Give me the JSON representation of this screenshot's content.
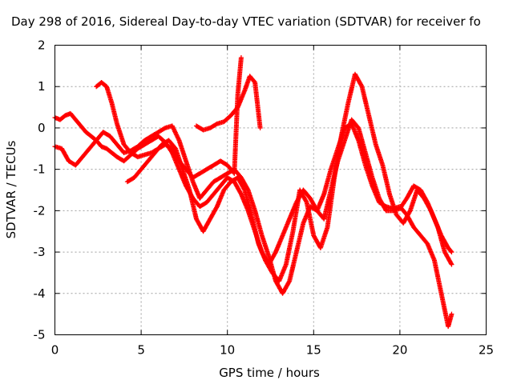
{
  "chart_data": {
    "type": "scatter",
    "title": "Day 298 of 2016, Sidereal Day-to-day VTEC variation (SDTVAR) for receiver fo",
    "xlabel": "GPS time / hours",
    "ylabel": "SDTVAR / TECUs",
    "xlim": [
      0,
      25
    ],
    "ylim": [
      -5,
      2
    ],
    "xticks": [
      "0",
      "5",
      "10",
      "15",
      "20",
      "25"
    ],
    "yticks": [
      "2",
      "1",
      "0",
      "-1",
      "-2",
      "-3",
      "-4",
      "-5"
    ],
    "grid": true,
    "marker": "+",
    "color": "#ff0000",
    "series": [
      {
        "x": [
          0,
          0.3,
          0.6,
          0.9,
          1.2,
          1.5,
          1.8,
          2.1,
          2.4,
          2.7,
          3.0,
          3.3,
          3.6,
          4.0,
          4.4,
          4.8,
          5.2,
          5.6,
          6.0,
          6.4,
          6.8,
          7.2,
          7.6,
          8.0,
          8.4,
          8.8,
          9.2,
          9.6,
          10.0,
          10.4,
          10.8,
          11.2,
          11.6,
          12.0,
          12.4,
          12.8,
          13.2,
          13.6,
          14.0,
          14.4,
          14.8,
          15.2,
          15.6,
          16.0,
          16.4,
          16.8,
          17.2,
          17.6,
          18.0,
          18.4,
          18.8,
          19.2,
          19.6,
          20.0,
          20.4,
          20.8,
          21.2,
          21.6,
          22.0,
          22.4,
          22.8,
          23.0
        ],
        "y": [
          0.25,
          0.2,
          0.3,
          0.35,
          0.2,
          0.05,
          -0.1,
          -0.2,
          -0.3,
          -0.45,
          -0.5,
          -0.6,
          -0.7,
          -0.8,
          -0.65,
          -0.5,
          -0.4,
          -0.3,
          -0.2,
          -0.35,
          -0.6,
          -1.0,
          -1.4,
          -1.7,
          -1.9,
          -1.8,
          -1.6,
          -1.4,
          -1.2,
          -1.3,
          -1.6,
          -2.0,
          -2.5,
          -3.0,
          -3.3,
          -3.0,
          -2.6,
          -2.2,
          -1.8,
          -1.5,
          -1.7,
          -2.0,
          -1.6,
          -1.0,
          -0.5,
          0.0,
          0.1,
          -0.3,
          -0.9,
          -1.4,
          -1.8,
          -1.9,
          -1.95,
          -1.9,
          -2.1,
          -2.4,
          -2.6,
          -2.8,
          -3.2,
          -4.0,
          -4.8,
          -4.5
        ]
      },
      {
        "x": [
          0,
          0.4,
          0.8,
          1.2,
          1.6,
          2.0,
          2.4,
          2.8,
          3.2,
          3.6,
          4.0,
          4.4,
          4.8,
          5.2,
          5.6,
          6.0,
          6.4,
          6.8,
          7.2,
          7.6,
          8.0,
          8.4,
          8.8,
          9.2,
          9.6,
          10.0,
          10.4,
          10.8,
          11.2,
          11.6,
          12.0,
          12.4,
          12.8,
          13.2,
          13.6,
          14.0,
          14.4,
          14.8,
          15.2,
          15.6,
          16.0,
          16.4,
          16.8,
          17.2,
          17.6,
          18.0,
          18.4,
          18.8,
          19.2,
          19.6,
          20.0,
          20.4,
          20.8,
          21.2,
          21.6,
          22.0,
          22.4,
          22.8,
          23.0
        ],
        "y": [
          -0.45,
          -0.5,
          -0.8,
          -0.9,
          -0.7,
          -0.5,
          -0.3,
          -0.1,
          -0.2,
          -0.4,
          -0.6,
          -0.55,
          -0.45,
          -0.3,
          -0.2,
          -0.1,
          0.0,
          0.05,
          -0.3,
          -0.8,
          -1.3,
          -1.7,
          -1.5,
          -1.3,
          -1.2,
          -1.1,
          -1.0,
          -1.2,
          -1.5,
          -2.0,
          -2.6,
          -3.1,
          -3.7,
          -4.0,
          -3.7,
          -3.0,
          -2.3,
          -1.9,
          -2.0,
          -2.2,
          -1.5,
          -0.8,
          -0.3,
          0.2,
          0.0,
          -0.6,
          -1.2,
          -1.7,
          -2.0,
          -2.0,
          -1.95,
          -1.7,
          -1.4,
          -1.5,
          -1.8,
          -2.2,
          -2.6,
          -2.9,
          -3.0
        ]
      },
      {
        "x": [
          2.4,
          2.7,
          3.0,
          3.3,
          3.6,
          4.0,
          4.4,
          4.8,
          5.2,
          5.6,
          6.0,
          6.4,
          6.8,
          7.2,
          7.6,
          8.0,
          8.4,
          8.8,
          9.2,
          9.6,
          10.0,
          10.4,
          10.6,
          10.8
        ],
        "y": [
          1.0,
          1.1,
          1.0,
          0.6,
          0.1,
          -0.4,
          -0.6,
          -0.7,
          -0.65,
          -0.6,
          -0.5,
          -0.4,
          -0.5,
          -0.8,
          -1.0,
          -1.2,
          -1.1,
          -1.0,
          -0.9,
          -0.8,
          -0.9,
          -1.1,
          0.8,
          1.7
        ]
      },
      {
        "x": [
          8.2,
          8.6,
          9.0,
          9.4,
          9.8,
          10.2,
          10.6,
          11.0,
          11.3,
          11.6,
          11.9
        ],
        "y": [
          0.05,
          -0.05,
          0.0,
          0.1,
          0.15,
          0.3,
          0.5,
          0.9,
          1.25,
          1.1,
          0.0
        ]
      },
      {
        "x": [
          4.2,
          4.6,
          5.0,
          5.4,
          5.8,
          6.2,
          6.6,
          7.0,
          7.4,
          7.8,
          8.2,
          8.6,
          9.0,
          9.4,
          9.8,
          10.2,
          10.6,
          11.0,
          11.4,
          11.8,
          12.2,
          12.6,
          13.0,
          13.4,
          13.8,
          14.2,
          14.6,
          15.0,
          15.4,
          15.8,
          16.2,
          16.6,
          17.0,
          17.4,
          17.8,
          18.2,
          18.6,
          19.0,
          19.4,
          19.8,
          20.2,
          20.6,
          21.0,
          21.4,
          21.8,
          22.2,
          22.6,
          23.0
        ],
        "y": [
          -1.3,
          -1.2,
          -1.0,
          -0.8,
          -0.6,
          -0.4,
          -0.3,
          -0.5,
          -1.0,
          -1.5,
          -2.2,
          -2.5,
          -2.2,
          -1.9,
          -1.5,
          -1.3,
          -1.2,
          -1.5,
          -2.1,
          -2.8,
          -3.2,
          -3.5,
          -3.7,
          -3.3,
          -2.5,
          -1.5,
          -1.8,
          -2.6,
          -2.9,
          -2.4,
          -1.2,
          -0.2,
          0.6,
          1.3,
          1.0,
          0.3,
          -0.4,
          -0.9,
          -1.6,
          -2.1,
          -2.3,
          -2.0,
          -1.5,
          -1.7,
          -2.0,
          -2.4,
          -3.0,
          -3.3
        ]
      }
    ]
  }
}
